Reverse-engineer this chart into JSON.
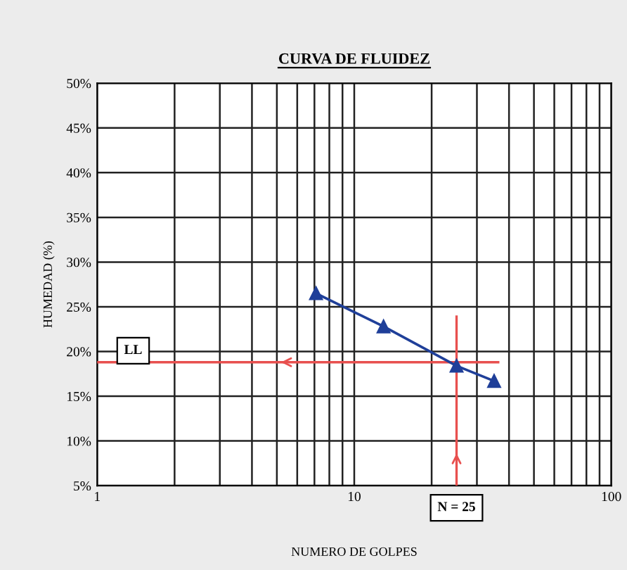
{
  "chart_data": {
    "type": "line",
    "title": "CURVA DE FLUIDEZ",
    "xlabel": "NUMERO DE GOLPES",
    "ylabel": "HUMEDAD (%)",
    "log": "x",
    "xlim": [
      1,
      100
    ],
    "ylim": [
      5,
      50
    ],
    "xticks": [
      1,
      {
        "value": 2,
        "label": null
      },
      {
        "value": 3,
        "label": null
      },
      {
        "value": 4,
        "label": null
      },
      {
        "value": 5,
        "label": null
      },
      {
        "value": 6,
        "label": null
      },
      {
        "value": 7,
        "label": null
      },
      {
        "value": 8,
        "label": null
      },
      {
        "value": 9,
        "label": null
      },
      10,
      {
        "value": 20,
        "label": null
      },
      {
        "value": 30,
        "label": null
      },
      {
        "value": 40,
        "label": null
      },
      {
        "value": 50,
        "label": null
      },
      {
        "value": 60,
        "label": null
      },
      {
        "value": 70,
        "label": null
      },
      {
        "value": 80,
        "label": null
      },
      {
        "value": 90,
        "label": null
      },
      100
    ],
    "yticks": [
      {
        "value": 5,
        "label": "5%"
      },
      {
        "value": 10,
        "label": "10%"
      },
      {
        "value": 15,
        "label": "15%"
      },
      {
        "value": 20,
        "label": "20%"
      },
      {
        "value": 25,
        "label": "25%"
      },
      {
        "value": 30,
        "label": "30%"
      },
      {
        "value": 35,
        "label": "35%"
      },
      {
        "value": 40,
        "label": "40%"
      },
      {
        "value": 45,
        "label": "45%"
      },
      {
        "value": 50,
        "label": "50%"
      }
    ],
    "grid": true,
    "marker": "triangle",
    "line_style": "solid",
    "series": [
      {
        "color": "#1f3f99",
        "x": [
          7.1,
          13,
          25,
          35
        ],
        "values": [
          26.5,
          22.8,
          18.4,
          16.7
        ]
      }
    ],
    "ref_lines": [
      {
        "axis": "y",
        "value": 18.8,
        "label": "LL",
        "color": "#e8504f"
      },
      {
        "axis": "x",
        "value": 25,
        "label": "N = 25",
        "color": "#e8504f"
      }
    ]
  }
}
